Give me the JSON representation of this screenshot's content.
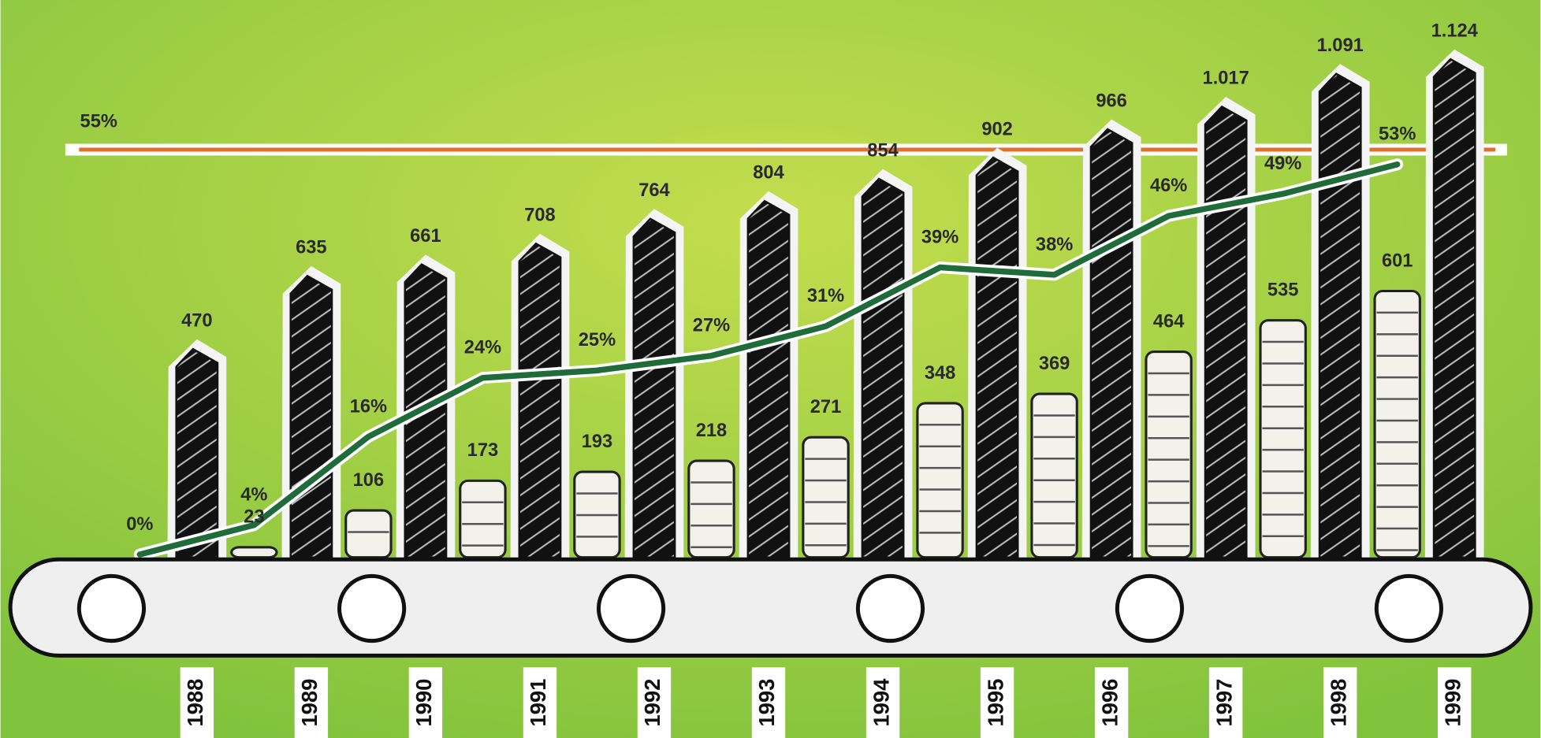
{
  "chart_data": {
    "type": "bar",
    "categories": [
      "1988",
      "1989",
      "1990",
      "1991",
      "1992",
      "1993",
      "1994",
      "1995",
      "1996",
      "1997",
      "1998",
      "1999"
    ],
    "ylim": [
      0,
      1200
    ],
    "y2lim": [
      0,
      60
    ],
    "series": [
      {
        "type": "bar",
        "color": "#111111",
        "values": [
          470,
          635,
          661,
          708,
          764,
          804,
          854,
          902,
          966,
          1017,
          1091,
          1124
        ],
        "value_labels": [
          "470",
          "635",
          "661",
          "708",
          "764",
          "804",
          "854",
          "902",
          "966",
          "1.017",
          "1.091",
          "1.124"
        ]
      },
      {
        "type": "container",
        "color": "#f2f2ea",
        "values": [
          null,
          23,
          106,
          173,
          193,
          218,
          271,
          348,
          369,
          464,
          535,
          601
        ],
        "value_labels": [
          null,
          "23",
          "106",
          "173",
          "193",
          "218",
          "271",
          "348",
          "369",
          "464",
          "535",
          "601"
        ]
      },
      {
        "type": "line",
        "axis": "y2",
        "color": "#1f6b3a",
        "values": [
          0,
          4,
          16,
          24,
          25,
          27,
          31,
          39,
          38,
          46,
          49,
          53
        ],
        "value_labels": [
          "0%",
          "4%",
          "16%",
          "24%",
          "25%",
          "27%",
          "31%",
          "39%",
          "38%",
          "46%",
          "49%",
          "53%"
        ]
      }
    ],
    "target": {
      "value": 55,
      "label": "55%",
      "color": "#e0702a"
    }
  }
}
